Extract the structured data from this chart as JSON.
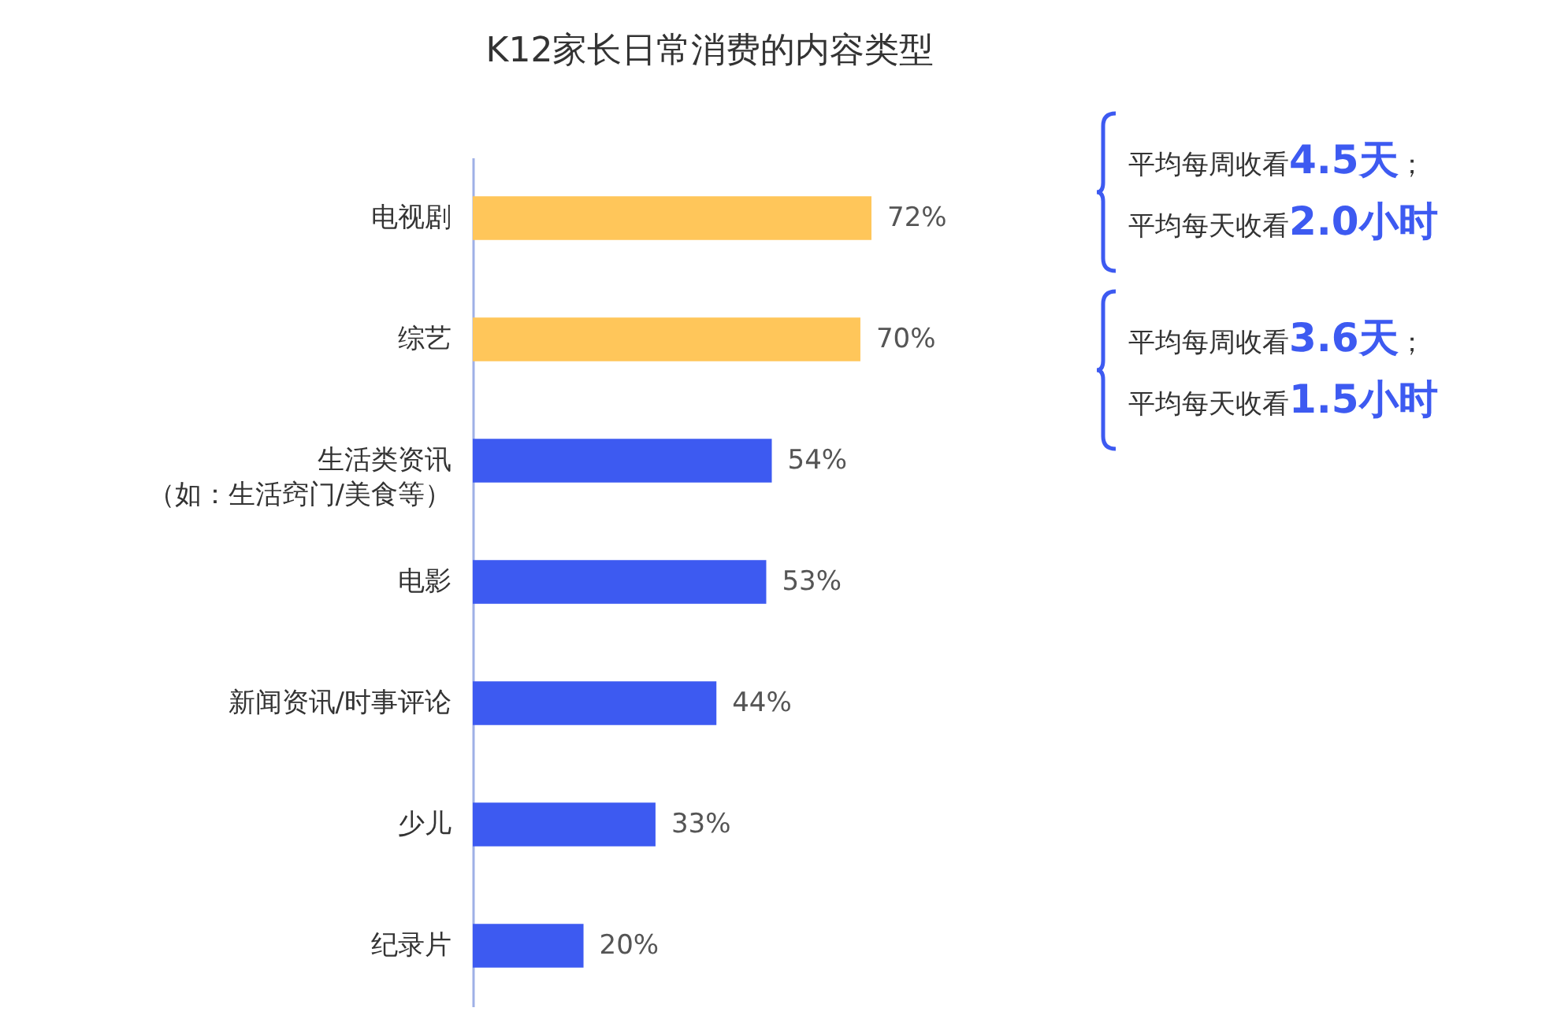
{
  "chart_data": {
    "type": "bar",
    "orientation": "horizontal",
    "title": "K12家长日常消费的内容类型",
    "categories": [
      "电视剧",
      "综艺",
      "生活类资讯（如：生活窍门/美食等）",
      "电影",
      "新闻资讯/时事评论",
      "少儿",
      "纪录片"
    ],
    "values": [
      72,
      70,
      54,
      53,
      44,
      33,
      20
    ],
    "colors": [
      "#ffc65a",
      "#ffc65a",
      "#3d5af1",
      "#3d5af1",
      "#3d5af1",
      "#3d5af1",
      "#3d5af1"
    ],
    "value_labels": [
      "72%",
      "70%",
      "54%",
      "53%",
      "44%",
      "33%",
      "20%"
    ],
    "annotations": [
      "平均每周收看4.5天；",
      "平均每天收看2.0小时",
      "平均每周收看3.6天；",
      "平均每天收看1.5小时"
    ]
  }
}
